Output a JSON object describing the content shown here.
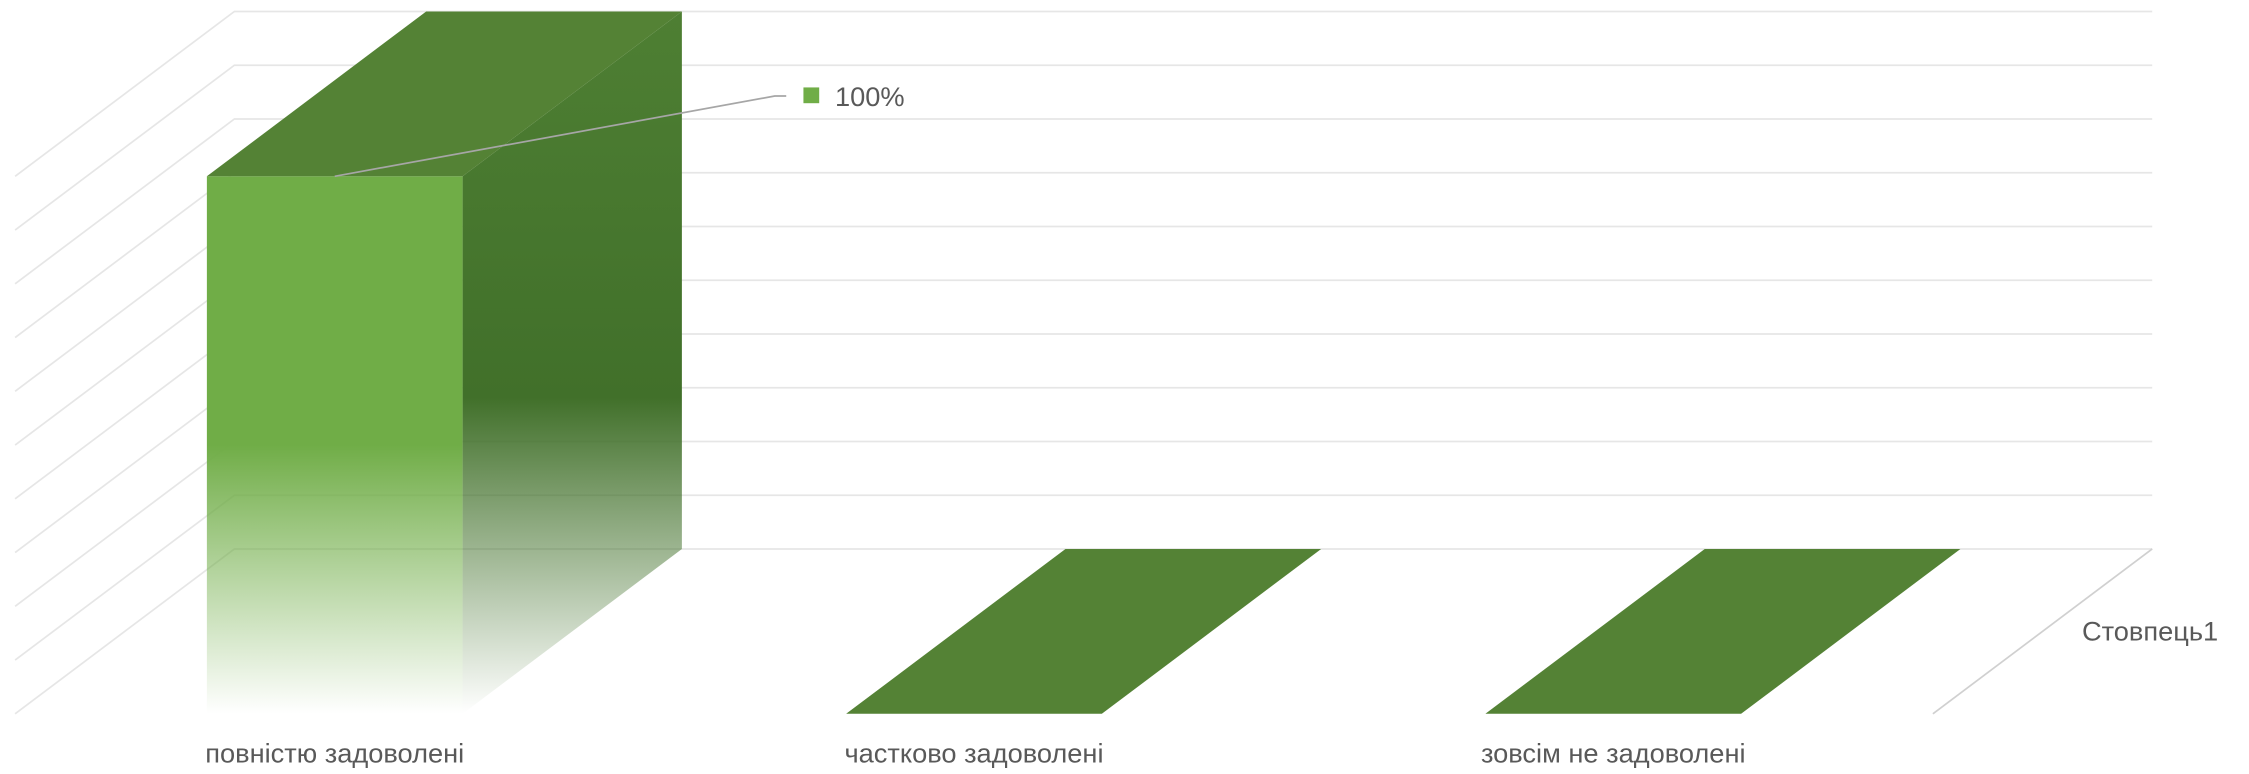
{
  "chart_data": {
    "type": "bar3d",
    "categories": [
      "повністю задоволені",
      "частково задоволені",
      "зовсім не задоволені"
    ],
    "series": [
      {
        "name": "Стовпець1",
        "color": "#70ad47",
        "values": [
          100,
          0,
          0
        ],
        "value_labels": [
          "100%",
          null,
          null
        ]
      }
    ],
    "ylim": [
      0,
      100
    ],
    "yticks": [
      0,
      10,
      20,
      30,
      40,
      50,
      60,
      70,
      80,
      90,
      100
    ],
    "grid": true,
    "legend": "right"
  }
}
